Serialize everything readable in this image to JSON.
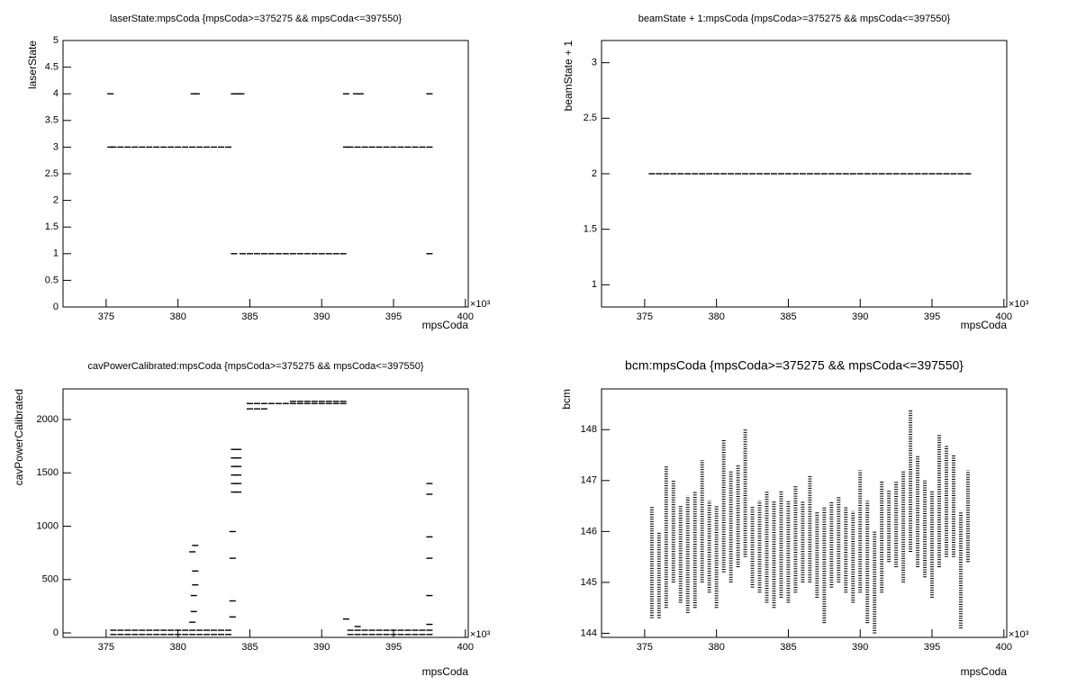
{
  "chart_data": [
    {
      "type": "scatter",
      "title": "laserState:mpsCoda {mpsCoda>=375275 && mpsCoda<=397550}",
      "x_label": "mpsCoda",
      "y_label": "laserState",
      "x_exponent": "×10³",
      "color": "#000000",
      "xlim": [
        372,
        400.2
      ],
      "xticks": [
        375,
        380,
        385,
        390,
        395,
        400
      ],
      "ylim": [
        0,
        5
      ],
      "yticks": [
        0,
        0.5,
        1,
        1.5,
        2,
        2.5,
        3,
        3.5,
        4,
        4.5,
        5
      ],
      "x": [
        375.3,
        375.5,
        376,
        376.5,
        377,
        377.5,
        378,
        378.5,
        379,
        379.5,
        380,
        380.5,
        381,
        381.5,
        382,
        382.5,
        383,
        383.5,
        383.9,
        384.5,
        385,
        385.5,
        386,
        386.5,
        387,
        387.5,
        388,
        388.5,
        389,
        389.5,
        390,
        390.5,
        391,
        391.5,
        391.7,
        392,
        392.5,
        393,
        393.5,
        394,
        394.5,
        395,
        395.5,
        396,
        396.5,
        397,
        397.5,
        375.3,
        381.1,
        381.3,
        383.9,
        384.2,
        384.4,
        391.7,
        392.4,
        392.7,
        397.5,
        397.5
      ],
      "y": [
        3,
        3,
        3,
        3,
        3,
        3,
        3,
        3,
        3,
        3,
        3,
        3,
        3,
        3,
        3,
        3,
        3,
        3,
        1,
        1,
        1,
        1,
        1,
        1,
        1,
        1,
        1,
        1,
        1,
        1,
        1,
        1,
        1,
        1,
        3,
        3,
        3,
        3,
        3,
        3,
        3,
        3,
        3,
        3,
        3,
        3,
        3,
        4,
        4,
        4,
        4,
        4,
        4,
        4,
        4,
        4,
        4,
        1
      ]
    },
    {
      "type": "scatter",
      "title": "beamState + 1:mpsCoda {mpsCoda>=375275 && mpsCoda<=397550}",
      "x_label": "mpsCoda",
      "y_label": "beamState + 1",
      "x_exponent": "×10³",
      "color": "#000000",
      "xlim": [
        372,
        400.2
      ],
      "xticks": [
        375,
        380,
        385,
        390,
        395,
        400
      ],
      "ylim": [
        0.8,
        3.2
      ],
      "yticks": [
        1,
        1.5,
        2,
        2.5,
        3
      ],
      "x": [
        375.5,
        376,
        376.5,
        377,
        377.5,
        378,
        378.5,
        379,
        379.5,
        380,
        380.5,
        381,
        381.5,
        382,
        382.5,
        383,
        383.5,
        384,
        384.5,
        385,
        385.5,
        386,
        386.5,
        387,
        387.5,
        388,
        388.5,
        389,
        389.5,
        390,
        390.5,
        391,
        391.5,
        392,
        392.5,
        393,
        393.5,
        394,
        394.5,
        395,
        395.5,
        396,
        396.5,
        397,
        397.5
      ],
      "y": [
        2,
        2,
        2,
        2,
        2,
        2,
        2,
        2,
        2,
        2,
        2,
        2,
        2,
        2,
        2,
        2,
        2,
        2,
        2,
        2,
        2,
        2,
        2,
        2,
        2,
        2,
        2,
        2,
        2,
        2,
        2,
        2,
        2,
        2,
        2,
        2,
        2,
        2,
        2,
        2,
        2,
        2,
        2,
        2,
        2
      ]
    },
    {
      "type": "scatter",
      "title": "cavPowerCalibrated:mpsCoda {mpsCoda>=375275 && mpsCoda<=397550}",
      "x_label": "mpsCoda",
      "y_label": "cavPowerCalibrated",
      "x_exponent": "×10³",
      "color": "#000000",
      "xlim": [
        372,
        400.2
      ],
      "xticks": [
        375,
        380,
        385,
        390,
        395,
        400
      ],
      "ylim": [
        -42,
        2287
      ],
      "yticks": [
        0,
        500,
        1000,
        1500,
        2000
      ],
      "x": [
        375.5,
        376,
        376.5,
        377,
        377.5,
        378,
        378.5,
        379,
        379.5,
        380,
        380.5,
        381,
        381.5,
        382,
        382.5,
        383,
        383.5,
        375.5,
        376,
        376.5,
        377,
        377.5,
        378,
        378.5,
        379,
        379.5,
        380,
        380.5,
        381,
        381.5,
        382,
        382.5,
        383,
        383.5,
        392,
        392.5,
        393,
        393.5,
        394,
        394.5,
        395,
        395.5,
        396,
        396.5,
        397,
        397.5,
        392,
        392.5,
        393,
        393.5,
        394,
        394.5,
        395,
        395.5,
        396,
        396.5,
        397,
        397.5,
        385,
        385.5,
        386,
        386.5,
        387,
        387.5,
        388,
        388.5,
        389,
        389.5,
        390,
        390.5,
        391,
        391.5,
        385,
        385.5,
        386,
        388,
        388.5,
        389,
        389.5,
        390,
        390.5,
        391,
        391.5,
        383.9,
        383.9,
        383.9,
        383.9,
        383.9,
        383.9,
        384.2,
        384.2,
        384.2,
        384.2,
        384.2,
        384.2,
        381,
        381.1,
        381.1,
        381.2,
        381.2,
        381.2,
        381,
        383.8,
        383.8,
        383.8,
        383.8,
        397.5,
        397.5,
        397.5,
        397.5,
        397.5,
        397.5,
        391.7,
        392.5
      ],
      "y": [
        25,
        25,
        25,
        25,
        25,
        25,
        25,
        25,
        25,
        25,
        25,
        25,
        25,
        25,
        25,
        25,
        25,
        -15,
        -15,
        -15,
        -15,
        -15,
        -15,
        -15,
        -15,
        -15,
        -15,
        -15,
        -15,
        -15,
        -15,
        -15,
        -15,
        -15,
        25,
        25,
        25,
        25,
        25,
        25,
        25,
        25,
        25,
        25,
        25,
        25,
        -15,
        -15,
        -15,
        -15,
        -15,
        -15,
        -15,
        -15,
        -15,
        -15,
        -15,
        -15,
        2150,
        2150,
        2150,
        2150,
        2150,
        2150,
        2150,
        2150,
        2150,
        2150,
        2150,
        2150,
        2150,
        2150,
        2100,
        2100,
        2100,
        2170,
        2170,
        2170,
        2170,
        2170,
        2170,
        2170,
        2170,
        1320,
        1400,
        1480,
        1560,
        1640,
        1720,
        1320,
        1400,
        1480,
        1560,
        1640,
        1720,
        100,
        200,
        350,
        450,
        580,
        820,
        760,
        300,
        700,
        950,
        150,
        1400,
        1300,
        900,
        700,
        350,
        80,
        130,
        60
      ]
    },
    {
      "type": "range",
      "title": "bcm:mpsCoda {mpsCoda>=375275 && mpsCoda<=397550}",
      "x_label": "mpsCoda",
      "y_label": "bcm",
      "x_exponent": "×10³",
      "color": "#000000",
      "xlim": [
        372,
        400.2
      ],
      "xticks": [
        375,
        380,
        385,
        390,
        395,
        400
      ],
      "ylim": [
        143.92,
        148.8
      ],
      "yticks": [
        144,
        145,
        146,
        147,
        148
      ],
      "x": [
        375.5,
        376,
        376.5,
        377,
        377.5,
        378,
        378.5,
        379,
        379.5,
        380,
        380.5,
        381,
        381.5,
        382,
        382.5,
        383,
        383.5,
        384,
        384.5,
        385,
        385.5,
        386,
        386.5,
        387,
        387.5,
        388,
        388.5,
        389,
        389.5,
        390,
        390.5,
        391,
        391.5,
        392,
        392.5,
        393,
        393.5,
        394,
        394.5,
        395,
        395.5,
        396,
        396.5,
        397,
        397.5
      ],
      "low": [
        144.3,
        144.3,
        144.5,
        145,
        144.6,
        144.4,
        144.5,
        145,
        144.8,
        144.5,
        145.2,
        145,
        145.3,
        145.5,
        144.9,
        144.8,
        144.6,
        144.5,
        144.7,
        144.6,
        144.8,
        145,
        145,
        144.7,
        144.2,
        144.9,
        145,
        144.8,
        144.6,
        144.8,
        144.2,
        144,
        144.8,
        145.4,
        145.3,
        145,
        145.6,
        145.3,
        145.1,
        144.7,
        145.3,
        145.5,
        145.5,
        144.1,
        145.4
      ],
      "high": [
        146.5,
        146,
        147.3,
        147,
        146.5,
        146.7,
        146.8,
        147.4,
        146.6,
        146.5,
        147.8,
        147.2,
        147.3,
        148,
        146.5,
        146.6,
        146.8,
        146.6,
        146.8,
        146.6,
        146.9,
        146.6,
        147.1,
        146.4,
        146.5,
        146.6,
        146.7,
        146.5,
        146.4,
        147.2,
        146.6,
        146,
        147,
        146.8,
        147,
        147.2,
        148.4,
        147.5,
        147,
        146.8,
        147.9,
        147.7,
        147.5,
        146.4,
        147.2
      ]
    }
  ]
}
